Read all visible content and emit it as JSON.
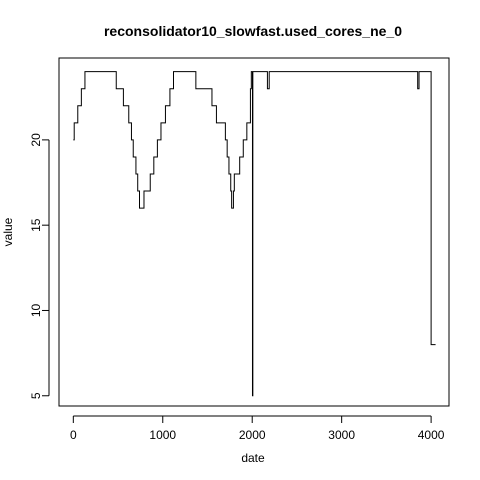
{
  "chart_data": {
    "type": "line",
    "title": "reconsolidator10_slowfast.used_cores_ne_0",
    "xlabel": "date",
    "ylabel": "value",
    "xlim": [
      -160,
      4200
    ],
    "ylim": [
      4.4,
      24.8
    ],
    "x_ticks": [
      0,
      1000,
      2000,
      3000,
      4000
    ],
    "x_tick_labels": [
      "0",
      "1000",
      "2000",
      "3000",
      "4000"
    ],
    "y_ticks": [
      5,
      10,
      15,
      20
    ],
    "y_tick_labels": [
      "5",
      "10",
      "15",
      "20"
    ],
    "grid": false,
    "legend": "none",
    "series": [
      {
        "line_color": "#000000",
        "points": [
          [
            0,
            20
          ],
          [
            10,
            20
          ],
          [
            10,
            21
          ],
          [
            50,
            21
          ],
          [
            50,
            22
          ],
          [
            90,
            22
          ],
          [
            90,
            23
          ],
          [
            130,
            23
          ],
          [
            130,
            24
          ],
          [
            480,
            24
          ],
          [
            480,
            23
          ],
          [
            560,
            23
          ],
          [
            560,
            22
          ],
          [
            620,
            22
          ],
          [
            620,
            21
          ],
          [
            650,
            21
          ],
          [
            650,
            20
          ],
          [
            670,
            20
          ],
          [
            670,
            19
          ],
          [
            700,
            19
          ],
          [
            700,
            18
          ],
          [
            720,
            18
          ],
          [
            720,
            17
          ],
          [
            740,
            17
          ],
          [
            740,
            16
          ],
          [
            790,
            16
          ],
          [
            790,
            17
          ],
          [
            860,
            17
          ],
          [
            860,
            18
          ],
          [
            900,
            18
          ],
          [
            900,
            19
          ],
          [
            940,
            19
          ],
          [
            940,
            20
          ],
          [
            980,
            20
          ],
          [
            980,
            21
          ],
          [
            1030,
            21
          ],
          [
            1030,
            22
          ],
          [
            1080,
            22
          ],
          [
            1080,
            23
          ],
          [
            1120,
            23
          ],
          [
            1120,
            24
          ],
          [
            1370,
            24
          ],
          [
            1370,
            23
          ],
          [
            1550,
            23
          ],
          [
            1550,
            22
          ],
          [
            1600,
            22
          ],
          [
            1600,
            21
          ],
          [
            1700,
            21
          ],
          [
            1700,
            20
          ],
          [
            1720,
            20
          ],
          [
            1720,
            19
          ],
          [
            1740,
            19
          ],
          [
            1740,
            18
          ],
          [
            1760,
            18
          ],
          [
            1760,
            17
          ],
          [
            1770,
            17
          ],
          [
            1770,
            16
          ],
          [
            1790,
            16
          ],
          [
            1790,
            17
          ],
          [
            1800,
            17
          ],
          [
            1800,
            18
          ],
          [
            1860,
            18
          ],
          [
            1860,
            19
          ],
          [
            1900,
            19
          ],
          [
            1900,
            20
          ],
          [
            1940,
            20
          ],
          [
            1940,
            21
          ],
          [
            1980,
            21
          ],
          [
            1980,
            23
          ],
          [
            1990,
            23
          ],
          [
            1990,
            24
          ],
          [
            2003,
            24
          ],
          [
            2003,
            5
          ],
          [
            2007,
            5
          ],
          [
            2007,
            24
          ],
          [
            2170,
            24
          ],
          [
            2170,
            23
          ],
          [
            2190,
            23
          ],
          [
            2190,
            24
          ],
          [
            3850,
            24
          ],
          [
            3850,
            23
          ],
          [
            3865,
            23
          ],
          [
            3865,
            24
          ],
          [
            4000,
            24
          ],
          [
            4000,
            8
          ],
          [
            4050,
            8
          ]
        ]
      }
    ]
  }
}
